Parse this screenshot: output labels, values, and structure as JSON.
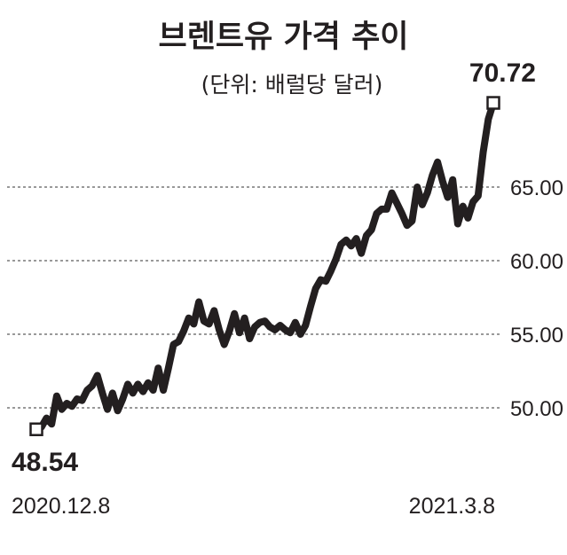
{
  "chart_data": {
    "type": "line",
    "title": "브렌트유 가격 추이",
    "subtitle": "(단위: 배럴당 달러)",
    "xlabel": "",
    "ylabel": "",
    "x_start_label": "2020.12.8",
    "x_end_label": "2021.3.8",
    "ylim": [
      47.0,
      72.5
    ],
    "yticks": [
      "50.00",
      "55.00",
      "60.00",
      "65.00"
    ],
    "grid": "horizontal dashed",
    "start_value_label": "48.54",
    "end_value_label": "70.72",
    "series": [
      {
        "values": [
          48.54,
          48.7,
          49.3,
          48.9,
          50.8,
          49.9,
          50.3,
          50.1,
          50.6,
          50.5,
          51.2,
          51.5,
          52.2,
          51.0,
          49.9,
          51.0,
          49.8,
          50.6,
          51.6,
          51.0,
          51.6,
          51.1,
          51.7,
          51.2,
          52.7,
          51.2,
          52.7,
          54.3,
          54.5,
          55.2,
          56.1,
          55.7,
          57.2,
          55.9,
          55.7,
          56.6,
          55.3,
          54.3,
          55.2,
          56.4,
          55.1,
          56.1,
          54.7,
          55.5,
          55.8,
          55.9,
          55.5,
          55.3,
          55.6,
          55.3,
          55.1,
          55.8,
          55.0,
          55.6,
          56.9,
          58.1,
          58.7,
          58.6,
          59.3,
          60.1,
          61.1,
          61.4,
          61.0,
          61.5,
          60.5,
          61.7,
          62.1,
          63.2,
          63.5,
          63.5,
          64.6,
          63.9,
          63.2,
          62.4,
          62.7,
          65.0,
          63.8,
          64.6,
          65.8,
          66.7,
          65.4,
          64.3,
          65.5,
          62.5,
          63.7,
          62.9,
          64.0,
          64.4,
          67.4,
          69.6,
          70.72
        ]
      }
    ],
    "colors": {
      "line": "#231f20",
      "grid": "#333333",
      "text": "#231f20"
    }
  }
}
